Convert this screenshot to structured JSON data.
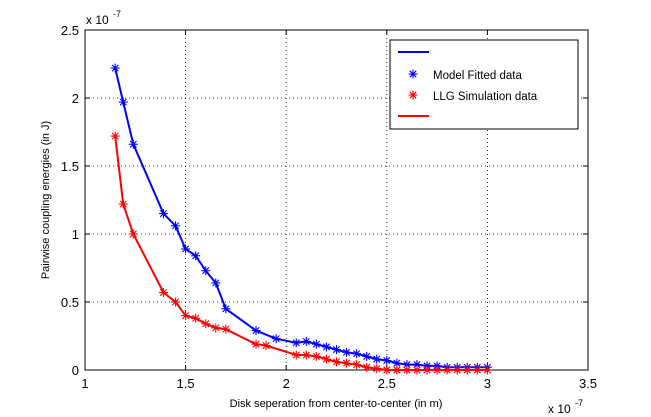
{
  "chart_data": {
    "type": "line",
    "title": "",
    "xlabel": "Disk seperation from center-to-center (in m)",
    "ylabel": "Pairwise coupling energies (in J)",
    "x_multiplier_label": "x 10",
    "x_multiplier_exp": "-7",
    "y_multiplier_label": "x 10",
    "y_multiplier_exp": "-7",
    "xlim": [
      1,
      3.5
    ],
    "ylim": [
      0,
      2.5
    ],
    "xticks": [
      "1",
      "1.5",
      "2",
      "2.5",
      "3",
      "3.5"
    ],
    "yticks": [
      "0",
      "0.5",
      "1",
      "1.5",
      "2",
      "2.5"
    ],
    "grid": true,
    "legend_position": "top-right",
    "legend_entries": [
      {
        "label": "",
        "color": "#0000ff",
        "style": "line"
      },
      {
        "label": "Model Fitted data",
        "color": "#0000ff",
        "style": "star"
      },
      {
        "label": "LLG Simulation data",
        "color": "#ff0000",
        "style": "star"
      },
      {
        "label": "",
        "color": "#ff0000",
        "style": "line"
      }
    ],
    "series": [
      {
        "color": "#0000ff",
        "x": [
          1.15,
          1.19,
          1.24,
          1.39,
          1.45,
          1.5,
          1.55,
          1.6,
          1.65,
          1.7,
          1.85,
          1.95,
          2.05,
          2.1,
          2.15,
          2.2,
          2.25,
          2.3,
          2.35,
          2.4,
          2.45,
          2.5,
          2.55,
          2.6,
          2.65,
          2.7,
          2.75,
          2.8,
          2.85,
          2.9,
          2.95,
          3.0
        ],
        "values": [
          2.22,
          1.97,
          1.66,
          1.15,
          1.06,
          0.89,
          0.84,
          0.73,
          0.64,
          0.45,
          0.29,
          0.23,
          0.2,
          0.21,
          0.19,
          0.17,
          0.15,
          0.13,
          0.12,
          0.1,
          0.08,
          0.07,
          0.05,
          0.04,
          0.04,
          0.03,
          0.03,
          0.02,
          0.02,
          0.02,
          0.02,
          0.02
        ]
      },
      {
        "color": "#ff0000",
        "x": [
          1.15,
          1.19,
          1.24,
          1.39,
          1.45,
          1.5,
          1.55,
          1.6,
          1.65,
          1.7,
          1.85,
          1.9,
          2.05,
          2.1,
          2.15,
          2.2,
          2.25,
          2.3,
          2.35,
          2.4,
          2.45,
          2.5,
          2.55,
          2.6,
          2.65,
          2.7,
          2.75,
          2.8,
          2.85,
          2.9,
          2.95,
          3.0
        ],
        "values": [
          1.72,
          1.22,
          1.0,
          0.57,
          0.5,
          0.4,
          0.38,
          0.34,
          0.31,
          0.3,
          0.19,
          0.18,
          0.11,
          0.11,
          0.1,
          0.08,
          0.06,
          0.05,
          0.04,
          0.02,
          0.01,
          0.0,
          0.0,
          0.0,
          0.0,
          0.0,
          0.0,
          0.0,
          0.0,
          0.0,
          0.0,
          0.0
        ]
      }
    ]
  }
}
